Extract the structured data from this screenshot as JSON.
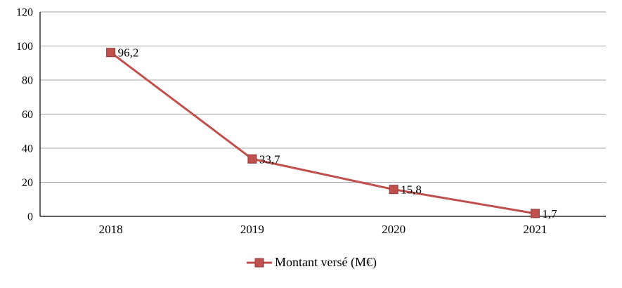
{
  "chart_data": {
    "type": "line",
    "title": "",
    "categories": [
      "2018",
      "2019",
      "2020",
      "2021"
    ],
    "series": [
      {
        "name": "Montant versé (M€)",
        "values": [
          96.2,
          33.7,
          15.8,
          1.7
        ],
        "value_labels": [
          "96,2",
          "33,7",
          "15,8",
          "1,7"
        ]
      }
    ],
    "ylim": [
      0,
      120
    ],
    "yticks": [
      0,
      20,
      40,
      60,
      80,
      100,
      120
    ],
    "grid": true,
    "legend_position": "bottom",
    "colors": {
      "line": "#c0504d",
      "marker_fill": "#c0504d",
      "marker_stroke": "#8e3a38",
      "grid": "#a6a6a6",
      "axis": "#000000",
      "text": "#000000"
    }
  },
  "legend": {
    "label": "Montant versé (M€)"
  }
}
